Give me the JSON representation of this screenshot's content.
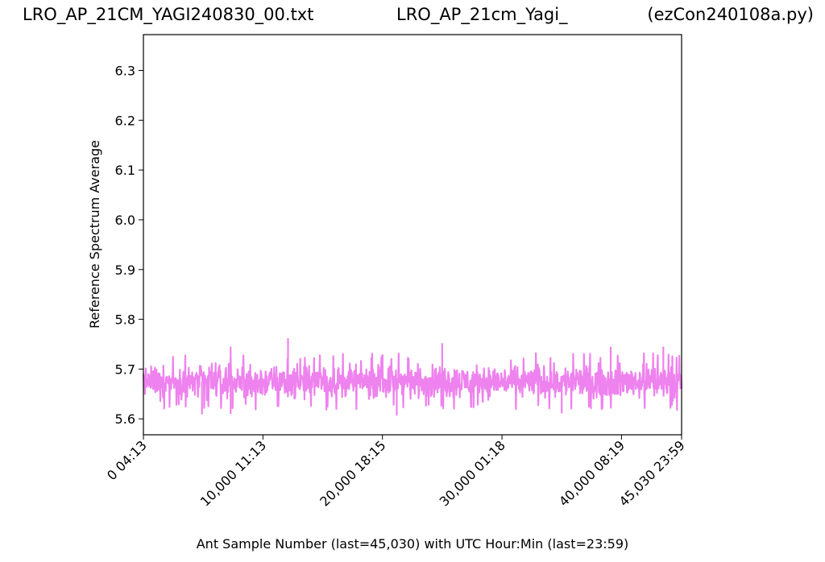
{
  "titles": {
    "left": "LRO_AP_21CM_YAGI240830_00.txt",
    "center": "LRO_AP_21cm_Yagi_",
    "right": "(ezCon240108a.py)"
  },
  "chart_data": {
    "type": "line",
    "xlabel": "Ant Sample Number (last=45,030) with UTC Hour:Min (last=23:59)",
    "ylabel": "Reference Spectrum Average",
    "xlim": [
      0,
      45030
    ],
    "ylim": [
      5.568,
      6.372
    ],
    "yticks": [
      5.6,
      5.7,
      5.8,
      5.9,
      6.0,
      6.1,
      6.2,
      6.3
    ],
    "ytick_labels": [
      "5.6",
      "5.7",
      "5.8",
      "5.9",
      "6.0",
      "6.1",
      "6.2",
      "6.3"
    ],
    "xticks": [
      0,
      10000,
      20000,
      30000,
      40000,
      45030
    ],
    "xtick_labels": [
      "0  04:13",
      "10,000  11:13",
      "20,000  18:15",
      "30,000  01:18",
      "40,000  08:19",
      "45,030  23:59"
    ],
    "grid": false,
    "series": [
      {
        "color": "#ee82ee",
        "mean": 5.675,
        "band_min": 5.63,
        "band_max": 5.72,
        "spikes": [
          {
            "x": 12100,
            "y": 5.762
          },
          {
            "x": 7300,
            "y": 5.745
          },
          {
            "x": 25000,
            "y": 5.752
          },
          {
            "x": 39100,
            "y": 5.745
          },
          {
            "x": 43500,
            "y": 5.745
          },
          {
            "x": 7300,
            "y": 5.61
          },
          {
            "x": 4900,
            "y": 5.609
          },
          {
            "x": 21200,
            "y": 5.607
          },
          {
            "x": 35000,
            "y": 5.611
          }
        ]
      }
    ]
  }
}
